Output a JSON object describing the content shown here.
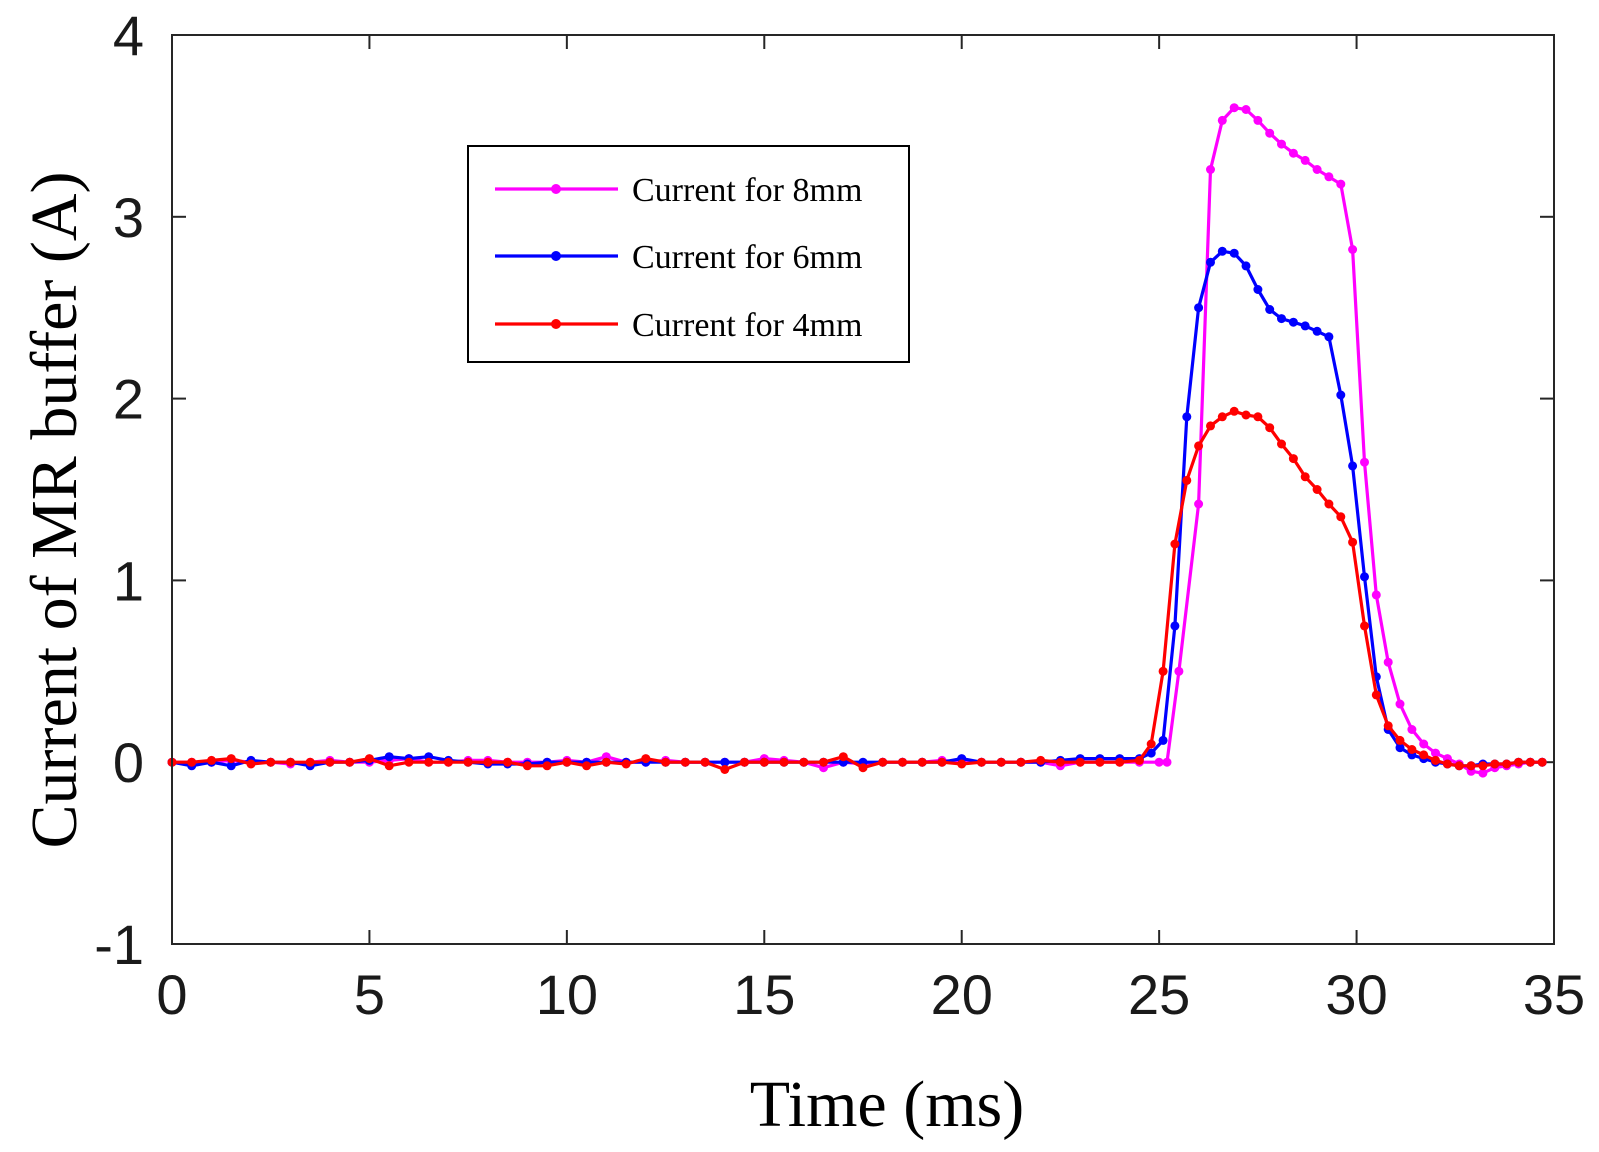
{
  "chart_data": {
    "type": "line",
    "title": "",
    "xlabel": "Time (ms)",
    "ylabel": "Current of MR buffer (A)",
    "xlim": [
      0,
      35
    ],
    "ylim": [
      -1,
      4
    ],
    "xticks": [
      0,
      5,
      10,
      15,
      20,
      25,
      30,
      35
    ],
    "yticks": [
      -1,
      0,
      1,
      2,
      3,
      4
    ],
    "xtick_labels": [
      "0",
      "5",
      "10",
      "15",
      "20",
      "25",
      "30",
      "35"
    ],
    "ytick_labels": [
      "-1",
      "0",
      "1",
      "2",
      "3",
      "4"
    ],
    "grid": false,
    "legend_position": "upper-left inside",
    "series": [
      {
        "name": "Current for 8mm",
        "color": "#ff00ff",
        "x": [
          0,
          0.5,
          1,
          1.5,
          2,
          2.5,
          3,
          3.5,
          4,
          4.5,
          5,
          5.5,
          6,
          6.5,
          7,
          7.5,
          8,
          8.5,
          9,
          9.5,
          10,
          10.5,
          11,
          11.5,
          12,
          12.5,
          13,
          13.5,
          14,
          14.5,
          15,
          15.5,
          16,
          16.5,
          17,
          17.5,
          18,
          18.5,
          19,
          19.5,
          20,
          20.5,
          21,
          21.5,
          22,
          22.5,
          23,
          23.5,
          24,
          24.5,
          25,
          25.2,
          25.5,
          26,
          26.3,
          26.6,
          26.9,
          27.2,
          27.5,
          27.8,
          28.1,
          28.4,
          28.7,
          29.0,
          29.3,
          29.6,
          29.9,
          30.2,
          30.5,
          30.8,
          31.1,
          31.4,
          31.7,
          32.0,
          32.3,
          32.6,
          32.9,
          33.2,
          33.5,
          33.8,
          34.1,
          34.4,
          34.7
        ],
        "y": [
          0.0,
          0.0,
          0.0,
          0.01,
          0.0,
          0.0,
          -0.01,
          0.0,
          0.01,
          0.0,
          0.0,
          0.01,
          0.02,
          0.0,
          0.0,
          0.01,
          0.01,
          0.0,
          0.0,
          0.0,
          0.01,
          0.0,
          0.03,
          0.0,
          0.0,
          0.01,
          0.0,
          0.0,
          0.0,
          0.0,
          0.02,
          0.01,
          0.0,
          -0.03,
          0.0,
          -0.01,
          0.0,
          0.0,
          0.0,
          0.01,
          0.0,
          0.0,
          0.0,
          0.0,
          0.0,
          -0.02,
          0.0,
          0.0,
          0.0,
          0.0,
          0.0,
          0.0,
          0.5,
          1.42,
          3.26,
          3.53,
          3.6,
          3.59,
          3.53,
          3.46,
          3.4,
          3.35,
          3.31,
          3.26,
          3.22,
          3.18,
          2.82,
          1.65,
          0.92,
          0.55,
          0.32,
          0.18,
          0.1,
          0.05,
          0.02,
          -0.01,
          -0.05,
          -0.06,
          -0.03,
          -0.02,
          -0.01,
          0.0,
          0.0
        ]
      },
      {
        "name": "Current for 6mm",
        "color": "#0000ff",
        "x": [
          0,
          0.5,
          1,
          1.5,
          2,
          2.5,
          3,
          3.5,
          4,
          4.5,
          5,
          5.5,
          6,
          6.5,
          7,
          7.5,
          8,
          8.5,
          9,
          9.5,
          10,
          10.5,
          11,
          11.5,
          12,
          12.5,
          13,
          13.5,
          14,
          14.5,
          15,
          15.5,
          16,
          16.5,
          17,
          17.5,
          18,
          18.5,
          19,
          19.5,
          20,
          20.5,
          21,
          21.5,
          22,
          22.5,
          23,
          23.5,
          24,
          24.5,
          24.8,
          25.1,
          25.4,
          25.7,
          26.0,
          26.3,
          26.6,
          26.9,
          27.2,
          27.5,
          27.8,
          28.1,
          28.4,
          28.7,
          29.0,
          29.3,
          29.6,
          29.9,
          30.2,
          30.5,
          30.8,
          31.1,
          31.4,
          31.7,
          32.0,
          32.3,
          32.6,
          32.9,
          33.2,
          33.5,
          33.8,
          34.1,
          34.4,
          34.7
        ],
        "y": [
          0.0,
          -0.02,
          0.0,
          -0.02,
          0.01,
          0.0,
          0.0,
          -0.02,
          0.0,
          0.0,
          0.01,
          0.03,
          0.02,
          0.03,
          0.01,
          0.0,
          -0.01,
          -0.01,
          -0.01,
          0.0,
          0.0,
          0.0,
          0.0,
          0.0,
          0.0,
          0.0,
          0.0,
          0.0,
          0.0,
          0.0,
          0.0,
          0.0,
          0.0,
          0.0,
          0.0,
          0.0,
          0.0,
          0.0,
          0.0,
          0.0,
          0.02,
          0.0,
          0.0,
          0.0,
          0.0,
          0.01,
          0.02,
          0.02,
          0.02,
          0.02,
          0.05,
          0.12,
          0.75,
          1.9,
          2.5,
          2.75,
          2.81,
          2.8,
          2.73,
          2.6,
          2.49,
          2.44,
          2.42,
          2.4,
          2.37,
          2.34,
          2.02,
          1.63,
          1.02,
          0.47,
          0.18,
          0.08,
          0.04,
          0.02,
          0.0,
          -0.01,
          -0.02,
          -0.02,
          -0.01,
          -0.01,
          -0.01,
          0.0,
          0.0,
          0.0
        ]
      },
      {
        "name": "Current for 4mm",
        "color": "#ff0000",
        "x": [
          0,
          0.5,
          1,
          1.5,
          2,
          2.5,
          3,
          3.5,
          4,
          4.5,
          5,
          5.5,
          6,
          6.5,
          7,
          7.5,
          8,
          8.5,
          9,
          9.5,
          10,
          10.5,
          11,
          11.5,
          12,
          12.5,
          13,
          13.5,
          14,
          14.5,
          15,
          15.5,
          16,
          16.5,
          17,
          17.5,
          18,
          18.5,
          19,
          19.5,
          20,
          20.5,
          21,
          21.5,
          22,
          22.5,
          23,
          23.5,
          24,
          24.5,
          24.8,
          25.1,
          25.4,
          25.7,
          26.0,
          26.3,
          26.6,
          26.9,
          27.2,
          27.5,
          27.8,
          28.1,
          28.4,
          28.7,
          29.0,
          29.3,
          29.6,
          29.9,
          30.2,
          30.5,
          30.8,
          31.1,
          31.4,
          31.7,
          32.0,
          32.3,
          32.6,
          32.9,
          33.2,
          33.5,
          33.8,
          34.1,
          34.4,
          34.7
        ],
        "y": [
          0.0,
          0.0,
          0.01,
          0.02,
          -0.01,
          0.0,
          0.0,
          0.0,
          0.0,
          0.0,
          0.02,
          -0.02,
          0.0,
          0.0,
          0.0,
          0.0,
          0.0,
          0.0,
          -0.02,
          -0.02,
          0.0,
          -0.02,
          0.0,
          -0.01,
          0.02,
          0.0,
          0.0,
          0.0,
          -0.04,
          0.0,
          0.0,
          0.0,
          0.0,
          0.0,
          0.03,
          -0.03,
          0.0,
          0.0,
          0.0,
          0.0,
          -0.01,
          0.0,
          0.0,
          0.0,
          0.01,
          0.0,
          0.0,
          0.0,
          0.0,
          0.01,
          0.1,
          0.5,
          1.2,
          1.55,
          1.74,
          1.85,
          1.9,
          1.93,
          1.91,
          1.9,
          1.84,
          1.75,
          1.67,
          1.57,
          1.5,
          1.42,
          1.35,
          1.21,
          0.75,
          0.37,
          0.2,
          0.12,
          0.07,
          0.04,
          0.01,
          -0.01,
          -0.02,
          -0.02,
          -0.02,
          -0.01,
          -0.01,
          0.0,
          0.0,
          0.0
        ]
      }
    ]
  }
}
